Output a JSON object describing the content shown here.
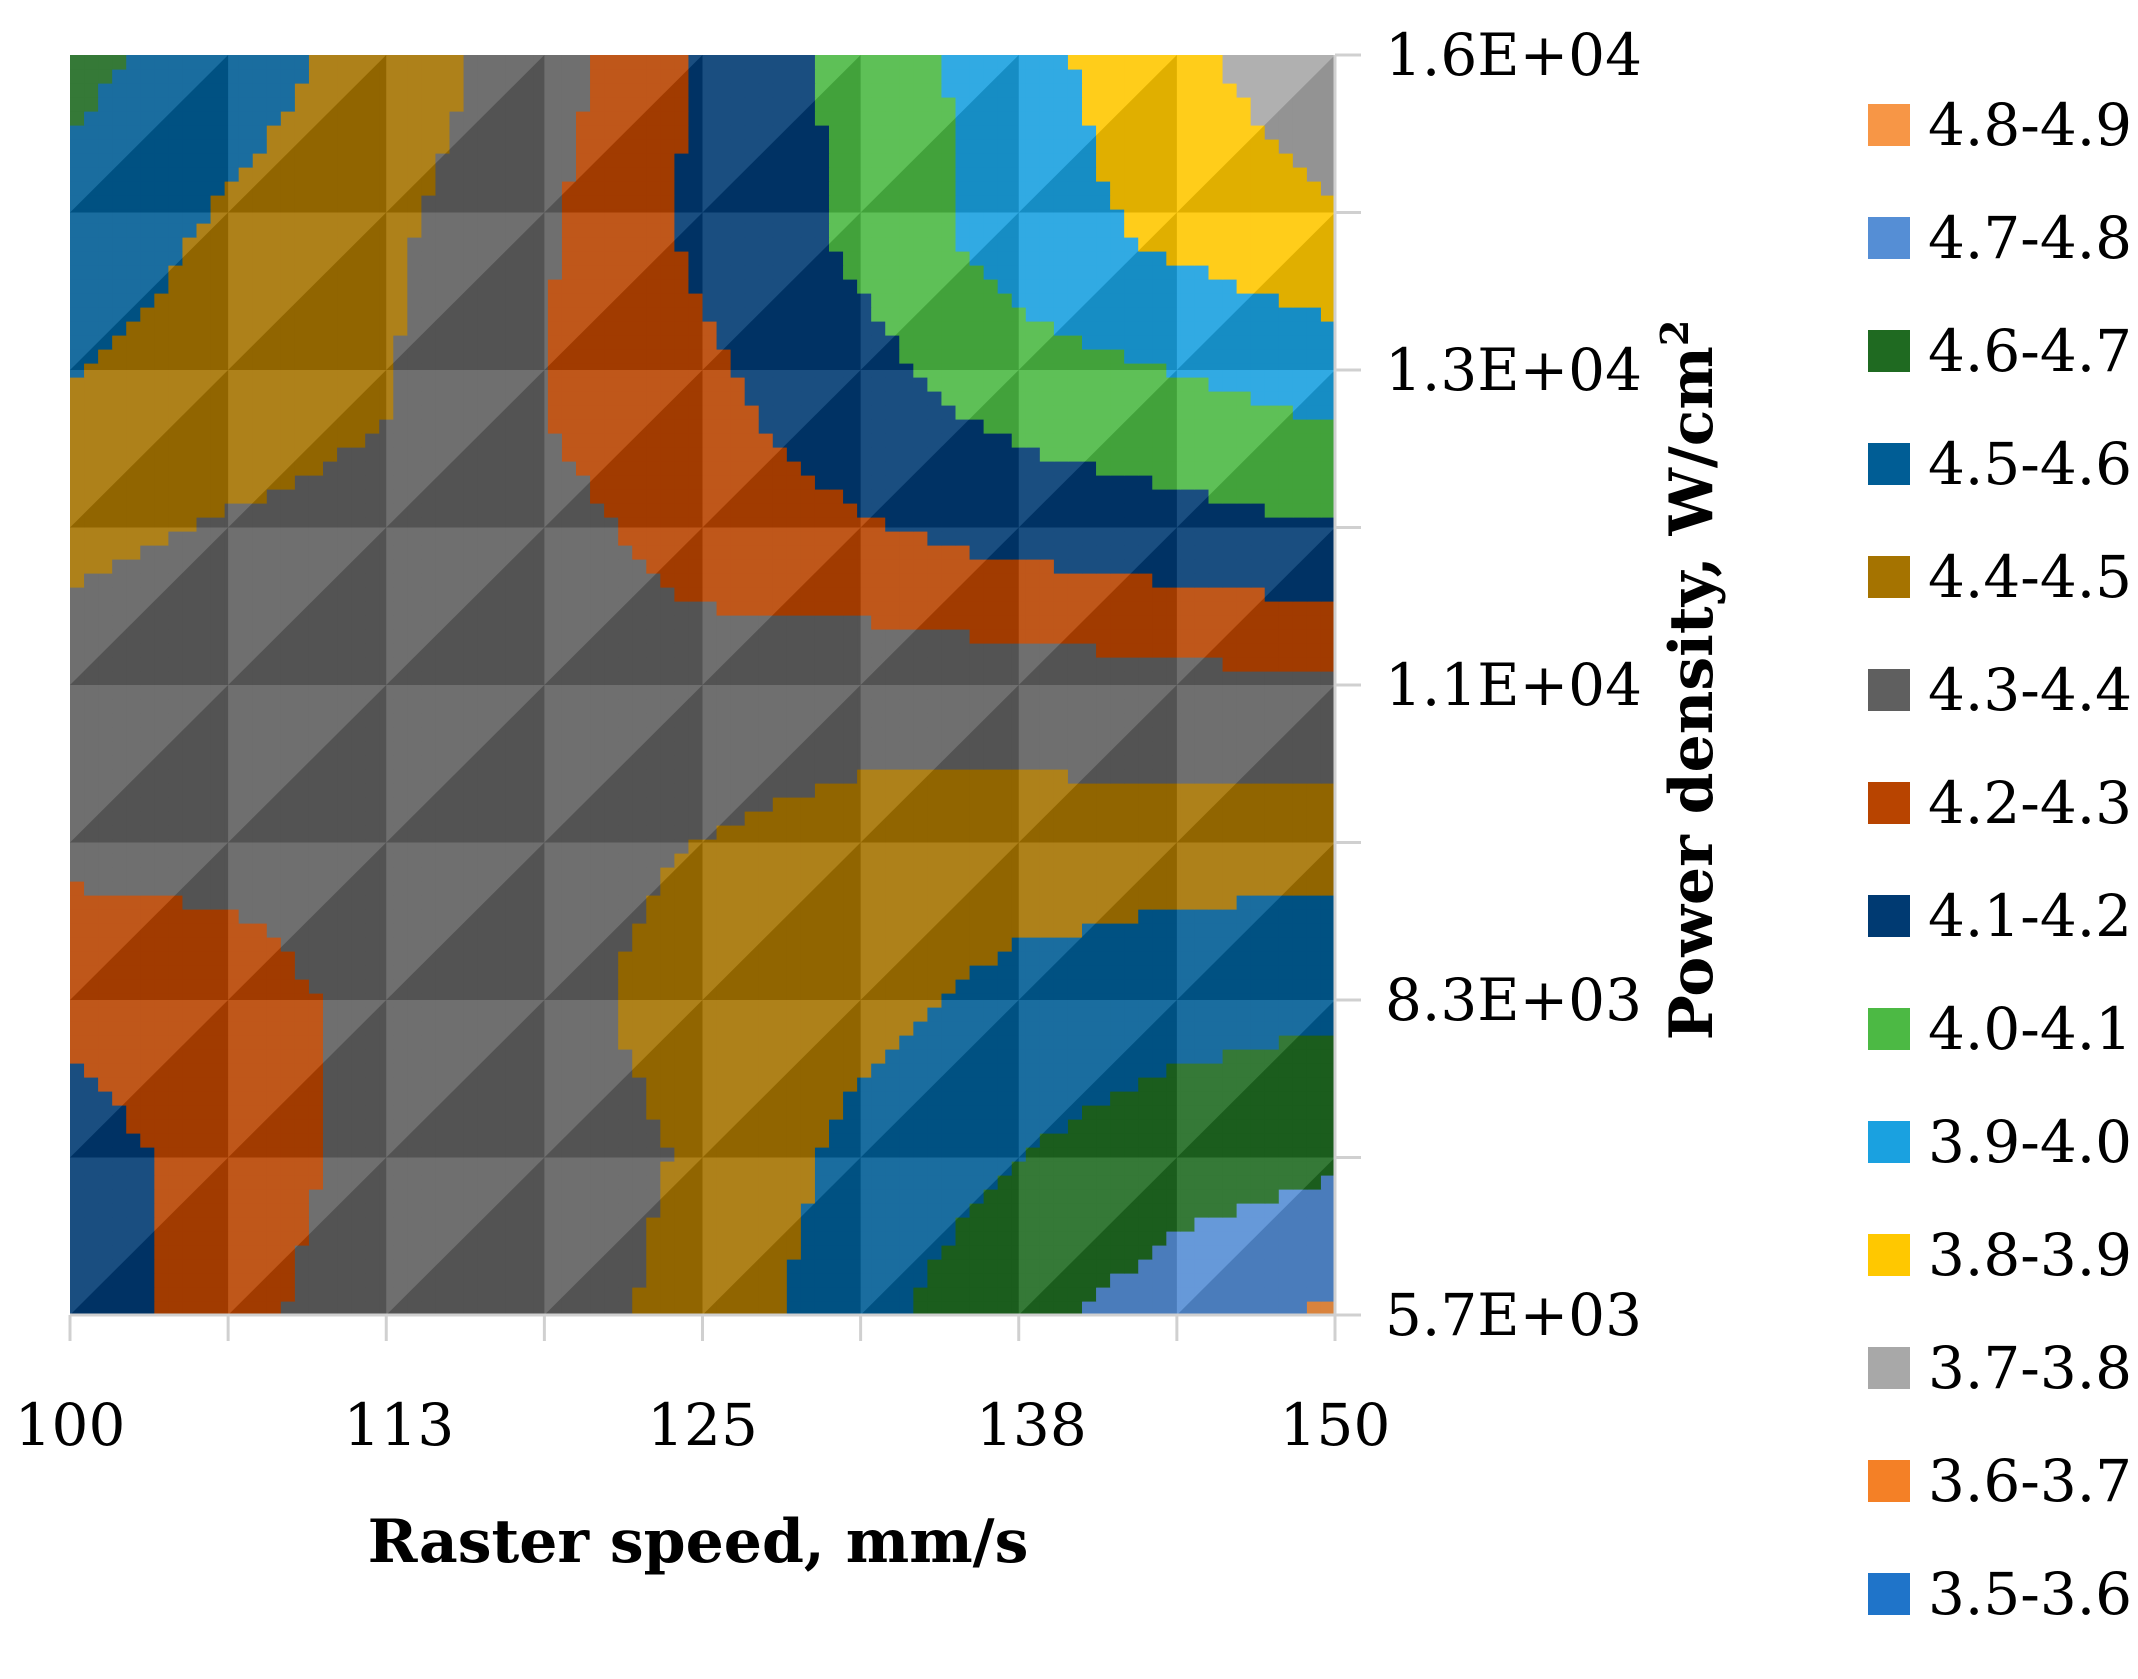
{
  "chart_data": {
    "type": "heatmap",
    "subtype": "contour",
    "title": "",
    "xlabel": "Raster speed, mm/s",
    "ylabel_main": "Power density, W/cm",
    "ylabel_sup": "2",
    "x_ticks": [
      "100",
      "113",
      "125",
      "138",
      "150"
    ],
    "x_values": [
      100,
      113,
      125,
      138,
      150
    ],
    "xlim": [
      100,
      150
    ],
    "y_ticks": [
      "5.7E+03",
      "8.3E+03",
      "1.1E+04",
      "1.3E+04",
      "1.6E+04"
    ],
    "y_values": [
      5700,
      8300,
      11000,
      13000,
      16000
    ],
    "ylim": [
      5700,
      16000
    ],
    "grid_x": [
      100,
      106.25,
      112.5,
      118.75,
      125,
      131.25,
      137.5,
      143.75,
      150
    ],
    "grid_y": [
      5700,
      7000,
      8300,
      9600,
      11000,
      12000,
      13000,
      14500,
      16000
    ],
    "z": [
      [
        4.12,
        4.26,
        4.37,
        4.36,
        4.43,
        4.57,
        4.67,
        4.75,
        4.82
      ],
      [
        4.16,
        4.24,
        4.34,
        4.36,
        4.41,
        4.53,
        4.6,
        4.65,
        4.68
      ],
      [
        4.23,
        4.25,
        4.34,
        4.37,
        4.44,
        4.47,
        4.53,
        4.56,
        4.58
      ],
      [
        4.33,
        4.34,
        4.35,
        4.37,
        4.4,
        4.43,
        4.44,
        4.45,
        4.46
      ],
      [
        4.36,
        4.36,
        4.35,
        4.36,
        4.34,
        4.35,
        4.33,
        4.31,
        4.29
      ],
      [
        4.42,
        4.38,
        4.35,
        4.34,
        4.26,
        4.22,
        4.18,
        4.15,
        4.12
      ],
      [
        4.48,
        4.45,
        4.4,
        4.3,
        4.23,
        4.15,
        4.08,
        4.04,
        4.0
      ],
      [
        4.56,
        4.48,
        4.42,
        4.31,
        4.18,
        4.08,
        3.95,
        3.88,
        3.82
      ],
      [
        4.63,
        4.55,
        4.46,
        4.35,
        4.18,
        4.07,
        3.94,
        3.82,
        3.73
      ]
    ],
    "legend": [
      {
        "label": "4.8-4.9",
        "color": "#f79646",
        "min": 4.8,
        "max": 4.9
      },
      {
        "label": "4.7-4.8",
        "color": "#558ed5",
        "min": 4.7,
        "max": 4.8
      },
      {
        "label": "4.6-4.7",
        "color": "#1f6a21",
        "min": 4.6,
        "max": 4.7
      },
      {
        "label": "4.5-4.6",
        "color": "#005d95",
        "min": 4.5,
        "max": 4.6
      },
      {
        "label": "4.4-4.5",
        "color": "#a57300",
        "min": 4.4,
        "max": 4.5
      },
      {
        "label": "4.3-4.4",
        "color": "#5f5f5f",
        "min": 4.3,
        "max": 4.4
      },
      {
        "label": "4.2-4.3",
        "color": "#b84400",
        "min": 4.2,
        "max": 4.3
      },
      {
        "label": "4.1-4.2",
        "color": "#003a72",
        "min": 4.1,
        "max": 4.2
      },
      {
        "label": "4.0-4.1",
        "color": "#4cb944",
        "min": 4.0,
        "max": 4.1
      },
      {
        "label": "3.9-4.0",
        "color": "#1aa1e0",
        "min": 3.9,
        "max": 4.0
      },
      {
        "label": "3.8-3.9",
        "color": "#ffc800",
        "min": 3.8,
        "max": 3.9
      },
      {
        "label": "3.7-3.8",
        "color": "#a8a8a8",
        "min": 3.7,
        "max": 3.8
      },
      {
        "label": "3.6-3.7",
        "color": "#f48026",
        "min": 3.6,
        "max": 3.7
      },
      {
        "label": "3.5-3.6",
        "color": "#1f74c9",
        "min": 3.5,
        "max": 3.6
      }
    ],
    "legend_position": "right"
  }
}
